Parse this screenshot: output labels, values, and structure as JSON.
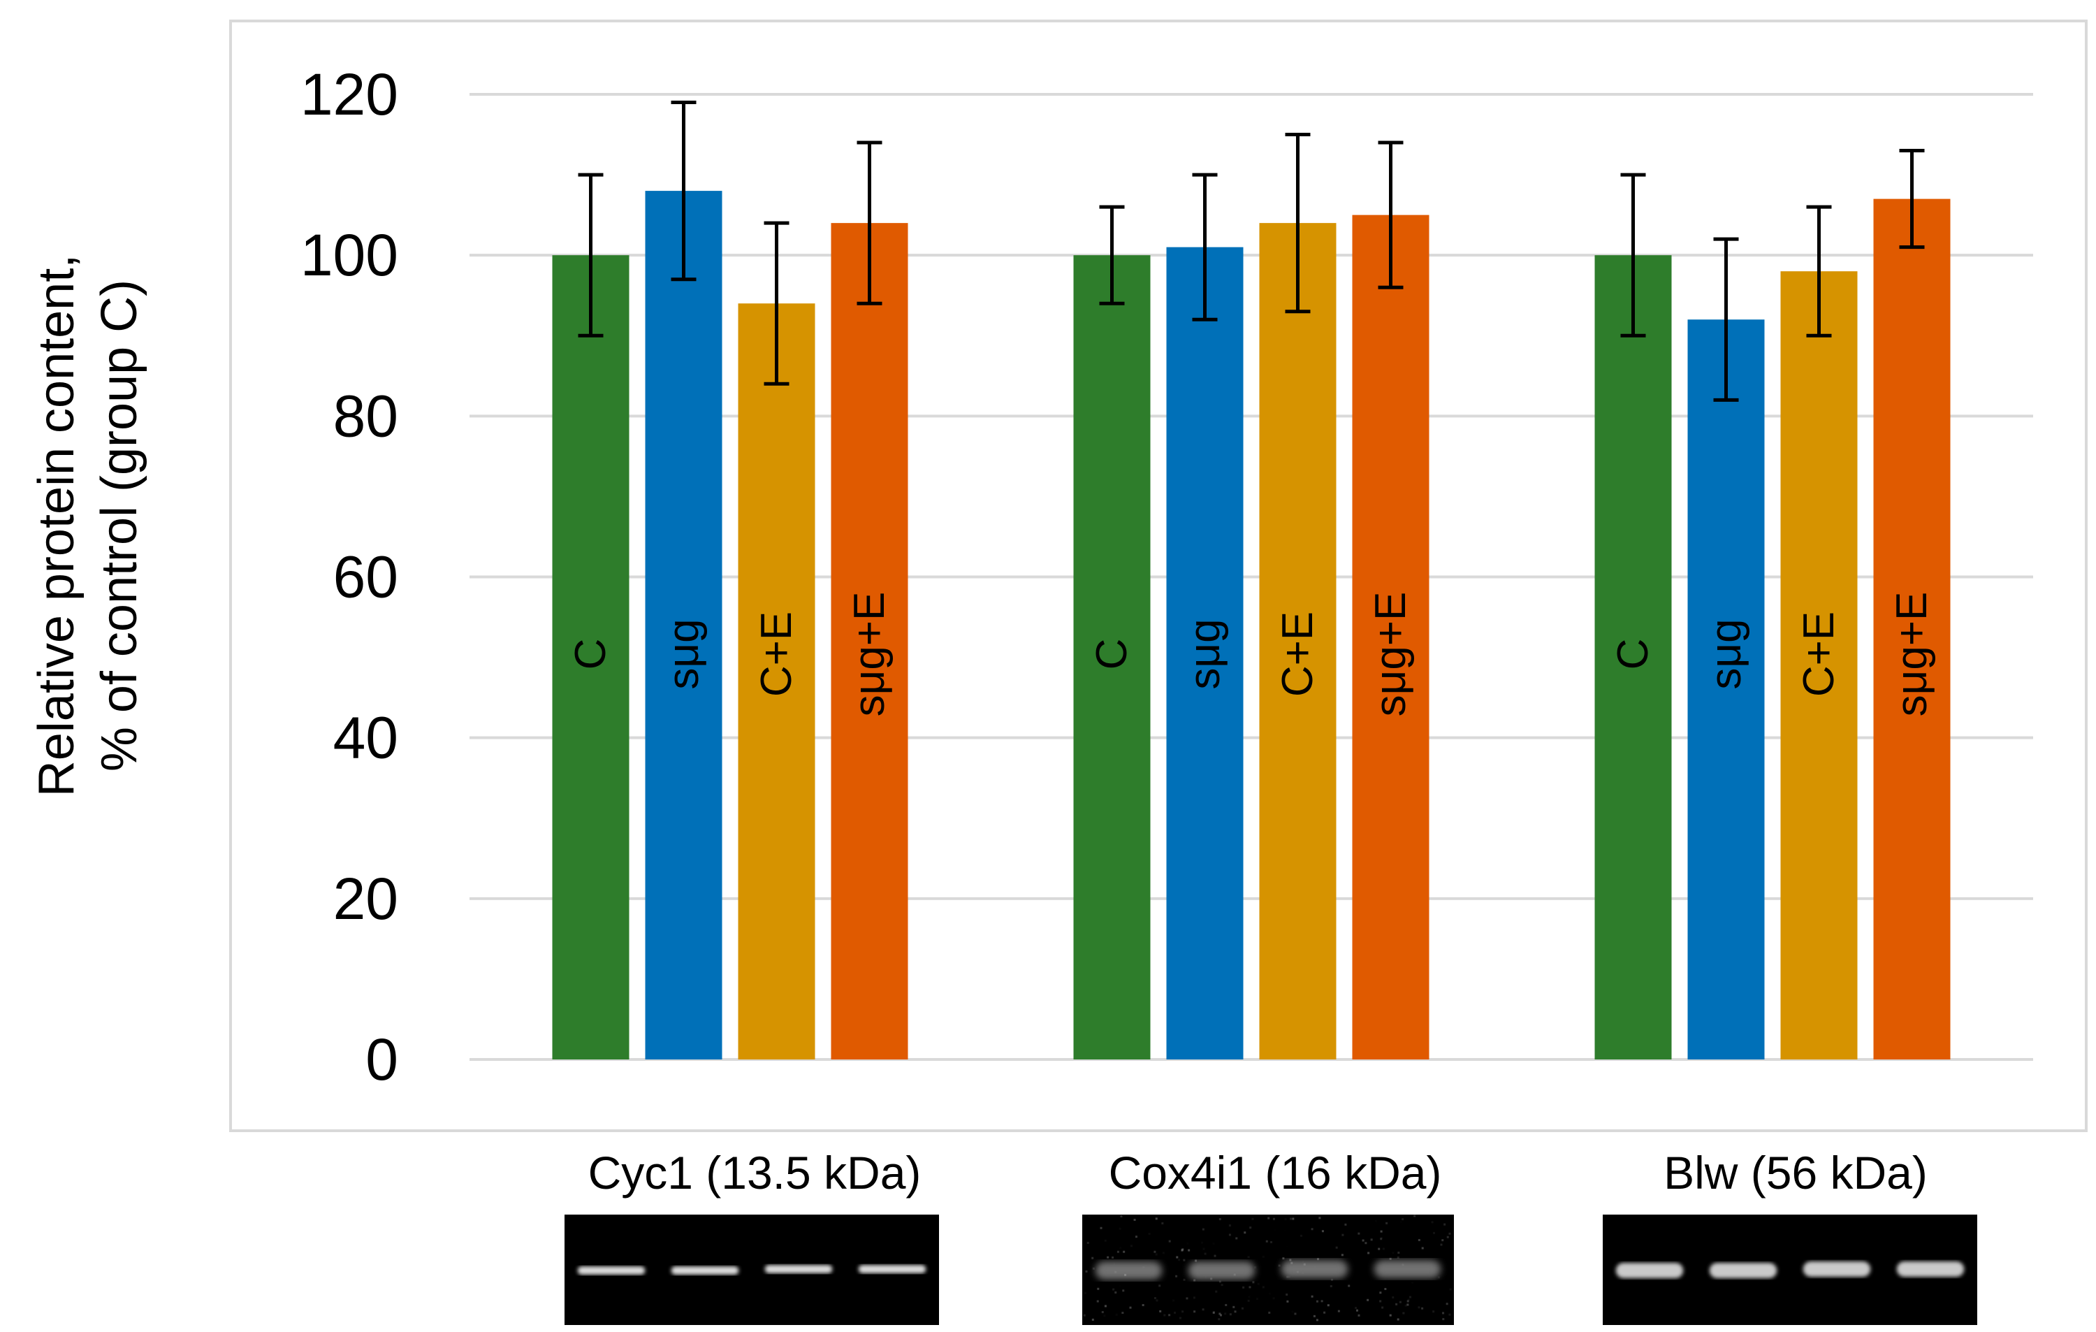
{
  "chart_data": {
    "type": "bar",
    "title": "",
    "xlabel": "",
    "ylabel": [
      "Relative protein content,",
      "% of control (group C)"
    ],
    "ylim": [
      0,
      120
    ],
    "yticks": [
      0,
      20,
      40,
      60,
      80,
      100,
      120
    ],
    "grid": true,
    "groups": [
      "Cyc1 (13.5 kDa)",
      "Cox4i1 (16 kDa)",
      "Blw (56 kDa)"
    ],
    "series": [
      {
        "name": "C",
        "color": "#2e7d2b",
        "values": [
          100,
          100,
          100
        ],
        "err_low": [
          90,
          94,
          90
        ],
        "err_high": [
          110,
          106,
          110
        ]
      },
      {
        "name": "sμg",
        "color": "#0070b8",
        "values": [
          108,
          101,
          92
        ],
        "err_low": [
          97,
          92,
          82
        ],
        "err_high": [
          119,
          110,
          102
        ]
      },
      {
        "name": "C+E",
        "color": "#d69300",
        "values": [
          94,
          104,
          98
        ],
        "err_low": [
          84,
          93,
          90
        ],
        "err_high": [
          104,
          115,
          106
        ]
      },
      {
        "name": "sμg+E",
        "color": "#e05a00",
        "values": [
          104,
          105,
          107
        ],
        "err_low": [
          94,
          96,
          101
        ],
        "err_high": [
          114,
          114,
          113
        ]
      }
    ]
  },
  "blots": [
    {
      "caption": "Cyc1 (13.5 kDa)",
      "style": "sharp"
    },
    {
      "caption": "Cox4i1 (16 kDa)",
      "style": "noisy"
    },
    {
      "caption": "Blw (56 kDa)",
      "style": "broad"
    }
  ]
}
